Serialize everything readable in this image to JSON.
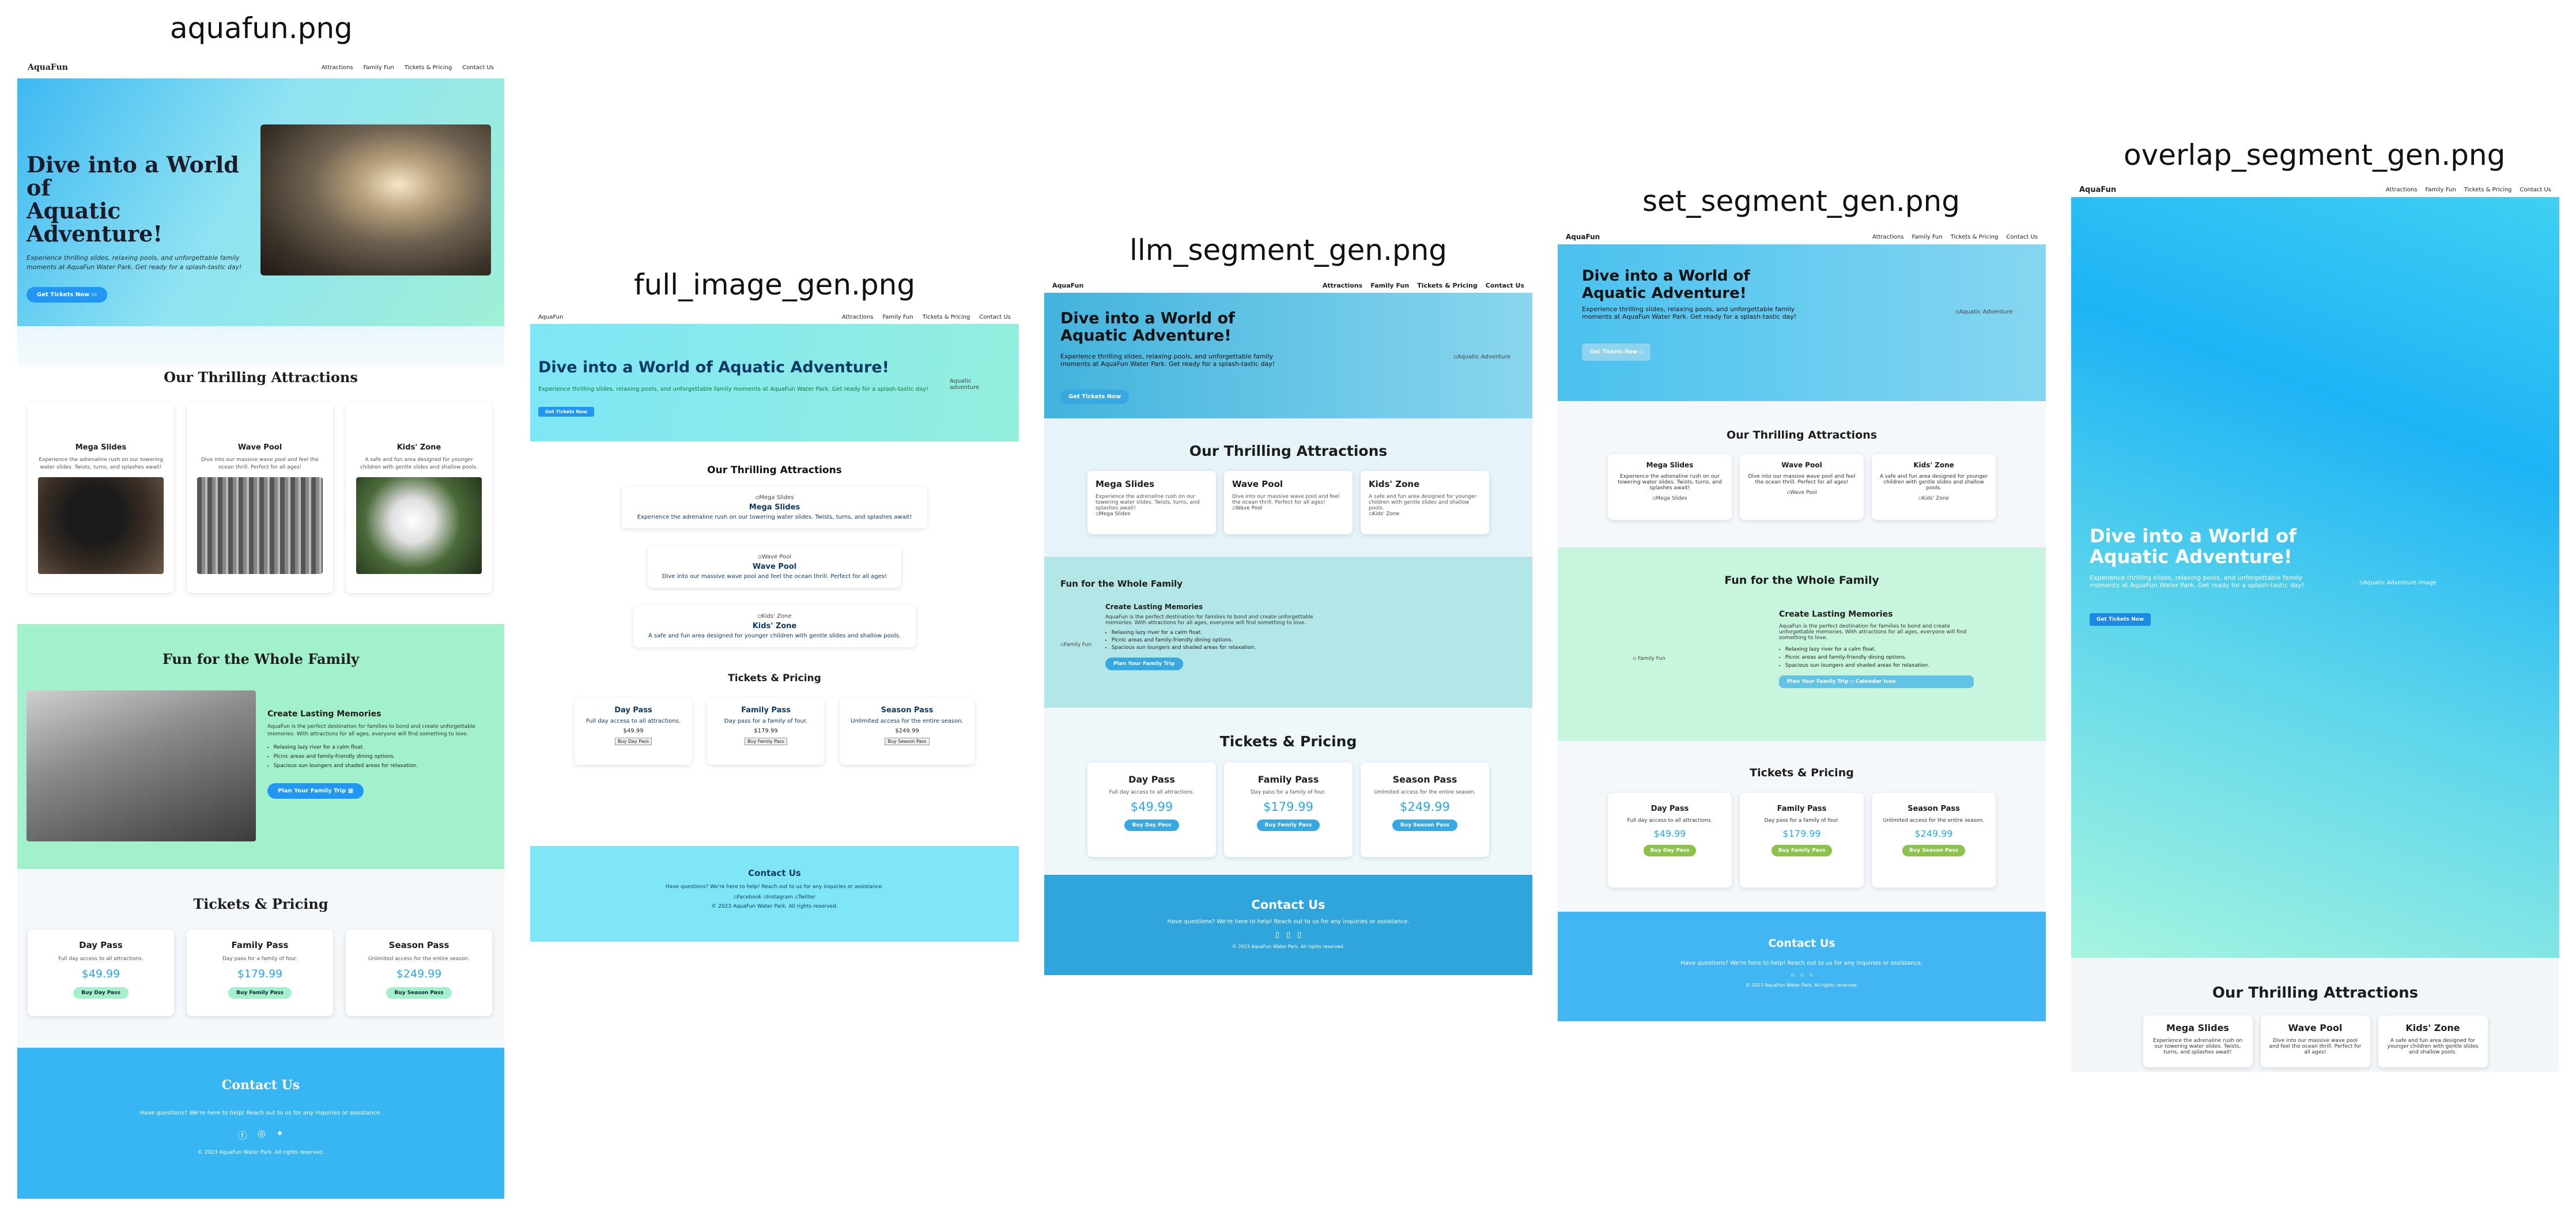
{
  "panels": {
    "p1": "aquafun.png",
    "p2": "full_image_gen.png",
    "p3": "llm_segment_gen.png",
    "p4": "set_segment_gen.png",
    "p5": "overlap_segment_gen.png"
  },
  "site": {
    "logo": "AquaFun",
    "nav": [
      "Attractions",
      "Family Fun",
      "Tickets & Pricing",
      "Contact Us"
    ],
    "hero": {
      "title_line1": "Dive into a World of",
      "title_line2": "Aquatic Adventure!",
      "title_full": "Dive into a World of Aquatic Adventure!",
      "subtitle": "Experience thrilling slides, relaxing pools, and unforgettable family moments at AquaFun Water Park. Get ready for a splash-tastic day!",
      "cta": "Get Tickets Now",
      "img_alt": "Aquatic Adventure",
      "img_alt_long": "Aquatic Adventure Image",
      "img_alt_p2": "Aquatic adventure"
    },
    "attractions": {
      "title": "Our Thrilling Attractions",
      "items": [
        {
          "name": "Mega Slides",
          "desc": "Experience the adrenaline rush on our towering water slides. Twists, turns, and splashes await!"
        },
        {
          "name": "Wave Pool",
          "desc": "Dive into our massive wave pool and feel the ocean thrill. Perfect for all ages!"
        },
        {
          "name": "Kids' Zone",
          "desc": "A safe and fun area designed for younger children with gentle slides and shallow pools."
        }
      ]
    },
    "family": {
      "title": "Fun for the Whole Family",
      "heading": "Create Lasting Memories",
      "text": "AquaFun is the perfect destination for families to bond and create unforgettable memories. With attractions for all ages, everyone will find something to love.",
      "bullets": [
        "Relaxing lazy river for a calm float.",
        "Picnic areas and family-friendly dining options.",
        "Spacious sun loungers and shaded areas for relaxation."
      ],
      "cta": "Plan Your Family Trip",
      "img_alt": "Family Fun",
      "calendar_label": "Calendar Icon"
    },
    "tickets": {
      "title": "Tickets & Pricing",
      "items": [
        {
          "name": "Day Pass",
          "desc": "Full day access to all attractions.",
          "price": "$49.99",
          "cta": "Buy Day Pass"
        },
        {
          "name": "Family Pass",
          "desc": "Day pass for a family of four.",
          "price": "$179.99",
          "cta": "Buy Family Pass"
        },
        {
          "name": "Season Pass",
          "desc": "Unlimited access for the entire season.",
          "price": "$249.99",
          "cta": "Buy Season Pass"
        }
      ]
    },
    "contact": {
      "title": "Contact Us",
      "text": "Have questions? We're here to help! Reach out to us for any inquiries or assistance.",
      "social": [
        "Facebook",
        "Instagram",
        "Twitter"
      ],
      "copyright": "© 2023 AquaFun Water Park. All rights reserved."
    }
  },
  "colors": {
    "hero_blue": "#3eb8f2",
    "hero_mint": "#97f0d8",
    "family_mint": "#a3f0cc",
    "footer_blue": "#38b6f3",
    "price_blue": "#27a9e8",
    "buy_green": "#8bc34a",
    "p2_footer": "#7ee6f6"
  },
  "icons": [
    "facebook-icon",
    "instagram-icon",
    "twitter-icon",
    "ticket-icon",
    "calendar-icon"
  ]
}
